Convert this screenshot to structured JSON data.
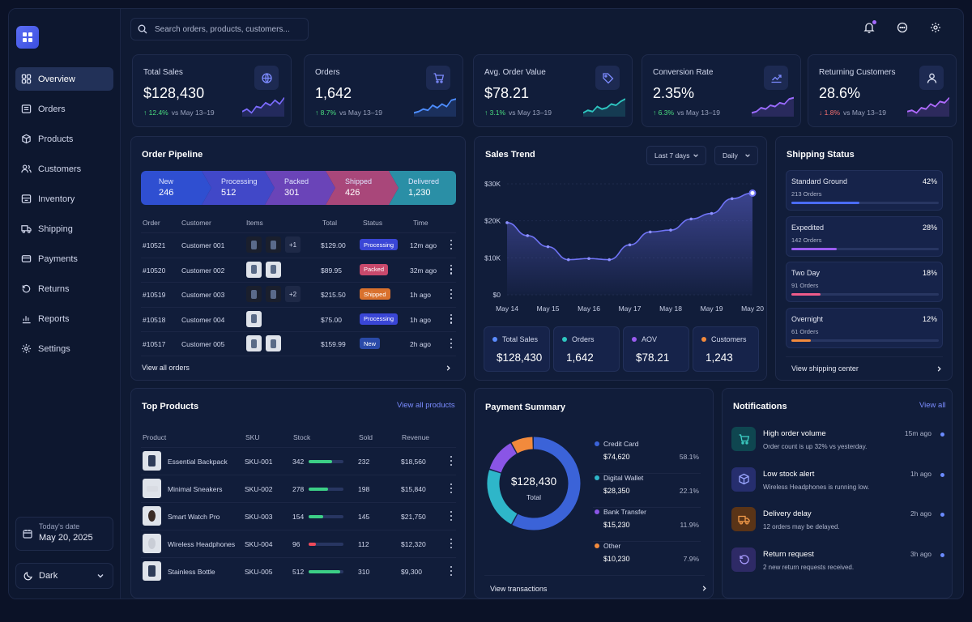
{
  "search": {
    "placeholder": "Search orders, products, customers..."
  },
  "nav": [
    {
      "label": "Overview",
      "icon": "grid-icon"
    },
    {
      "label": "Orders",
      "icon": "orders-icon"
    },
    {
      "label": "Products",
      "icon": "box-icon"
    },
    {
      "label": "Customers",
      "icon": "users-icon"
    },
    {
      "label": "Inventory",
      "icon": "inventory-icon"
    },
    {
      "label": "Shipping",
      "icon": "truck-icon"
    },
    {
      "label": "Payments",
      "icon": "card-icon"
    },
    {
      "label": "Returns",
      "icon": "return-icon"
    },
    {
      "label": "Reports",
      "icon": "chart-icon"
    },
    {
      "label": "Settings",
      "icon": "gear-icon"
    }
  ],
  "today": {
    "label": "Today's date",
    "value": "May 20, 2025"
  },
  "theme": {
    "label": "Dark"
  },
  "kpis": [
    {
      "title": "Total Sales",
      "value": "$128,430",
      "delta": "12.4%",
      "trend": "up",
      "compare": "vs May 13–19",
      "icon": "globe-icon"
    },
    {
      "title": "Orders",
      "value": "1,642",
      "delta": "8.7%",
      "trend": "up",
      "compare": "vs May 13–19",
      "icon": "cart-icon"
    },
    {
      "title": "Avg. Order Value",
      "value": "$78.21",
      "delta": "3.1%",
      "trend": "up",
      "compare": "vs May 13–19",
      "icon": "tag-icon"
    },
    {
      "title": "Conversion Rate",
      "value": "2.35%",
      "delta": "6.3%",
      "trend": "up",
      "compare": "vs May 13–19",
      "icon": "trend-icon"
    },
    {
      "title": "Returning Customers",
      "value": "28.6%",
      "delta": "1.8%",
      "trend": "down",
      "compare": "vs May 13–19",
      "icon": "user-icon"
    }
  ],
  "pipeline": {
    "title": "Order Pipeline",
    "stages": [
      {
        "label": "New",
        "count": "246",
        "color": "#2f4fd1"
      },
      {
        "label": "Processing",
        "count": "512",
        "color": "#4148c8"
      },
      {
        "label": "Packed",
        "count": "301",
        "color": "#6a44b8"
      },
      {
        "label": "Shipped",
        "count": "426",
        "color": "#a9477a"
      },
      {
        "label": "Delivered",
        "count": "1,230",
        "color": "#2a8fa6"
      }
    ],
    "headers": [
      "Order",
      "Customer",
      "Items",
      "Total",
      "Status",
      "Time"
    ],
    "rows": [
      {
        "id": "#10521",
        "customer": "Customer 001",
        "extra": "+1",
        "total": "$129.00",
        "status": "Processing",
        "statusColor": "#3a46d6",
        "time": "12m ago"
      },
      {
        "id": "#10520",
        "customer": "Customer 002",
        "extra": "",
        "total": "$89.95",
        "status": "Packed",
        "statusColor": "#c8496c",
        "time": "32m ago"
      },
      {
        "id": "#10519",
        "customer": "Customer 003",
        "extra": "+2",
        "total": "$215.50",
        "status": "Shipped",
        "statusColor": "#d9712d",
        "time": "1h ago"
      },
      {
        "id": "#10518",
        "customer": "Customer 004",
        "extra": "",
        "total": "$75.00",
        "status": "Processing",
        "statusColor": "#3a46d6",
        "time": "1h ago"
      },
      {
        "id": "#10517",
        "customer": "Customer 005",
        "extra": "",
        "total": "$159.99",
        "status": "New",
        "statusColor": "#2a4aa8",
        "time": "2h ago"
      }
    ],
    "footer": "View all orders"
  },
  "sales_trend": {
    "title": "Sales Trend",
    "range": "Last 7 days",
    "interval": "Daily",
    "tiles": [
      {
        "label": "Total Sales",
        "value": "$128,430",
        "color": "#5b8cff"
      },
      {
        "label": "Orders",
        "value": "1,642",
        "color": "#2ec6c0"
      },
      {
        "label": "AOV",
        "value": "$78.21",
        "color": "#9a5cf0"
      },
      {
        "label": "Customers",
        "value": "1,243",
        "color": "#f28a3c"
      }
    ]
  },
  "chart_data": {
    "type": "area",
    "x": [
      "May 14",
      "May 14.5",
      "May 15",
      "May 15.5",
      "May 16",
      "May 16.5",
      "May 17",
      "May 17.5",
      "May 18",
      "May 18.5",
      "May 19",
      "May 19.5",
      "May 20"
    ],
    "categories": [
      "May 14",
      "May 15",
      "May 16",
      "May 17",
      "May 18",
      "May 19",
      "May 20"
    ],
    "values": [
      19500,
      16000,
      13000,
      9500,
      9800,
      9500,
      13500,
      17000,
      17500,
      20500,
      22000,
      26000,
      27500
    ],
    "yticks": [
      "$0",
      "$10K",
      "$20K",
      "$30K"
    ],
    "ylim": [
      0,
      30000
    ],
    "grid": true,
    "color": "#6f73f5"
  },
  "shipping": {
    "title": "Shipping Status",
    "items": [
      {
        "name": "Standard Ground",
        "pct": "42%",
        "orders": "213 Orders",
        "fill": 0.42,
        "color": "#4a6cf5"
      },
      {
        "name": "Expedited",
        "pct": "28%",
        "orders": "142 Orders",
        "fill": 0.28,
        "color": "#9a5cf0"
      },
      {
        "name": "Two Day",
        "pct": "18%",
        "orders": "91 Orders",
        "fill": 0.18,
        "color": "#ef5b8a"
      },
      {
        "name": "Overnight",
        "pct": "12%",
        "orders": "61 Orders",
        "fill": 0.12,
        "color": "#f28a3c"
      }
    ],
    "footer": "View shipping center"
  },
  "top_products": {
    "title": "Top Products",
    "link": "View all products",
    "headers": [
      "Product",
      "SKU",
      "Stock",
      "Sold",
      "Revenue"
    ],
    "rows": [
      {
        "name": "Essential Backpack",
        "sku": "SKU-001",
        "stock": "342",
        "stockFill": 0.68,
        "stockColor": "#3ccf86",
        "sold": "232",
        "revenue": "$18,560"
      },
      {
        "name": "Minimal Sneakers",
        "sku": "SKU-002",
        "stock": "278",
        "stockFill": 0.56,
        "stockColor": "#3ccf86",
        "sold": "198",
        "revenue": "$15,840"
      },
      {
        "name": "Smart Watch Pro",
        "sku": "SKU-003",
        "stock": "154",
        "stockFill": 0.42,
        "stockColor": "#3ccf86",
        "sold": "145",
        "revenue": "$21,750"
      },
      {
        "name": "Wireless Headphones",
        "sku": "SKU-004",
        "stock": "96",
        "stockFill": 0.22,
        "stockColor": "#ef4a5a",
        "sold": "112",
        "revenue": "$12,320"
      },
      {
        "name": "Stainless Bottle",
        "sku": "SKU-005",
        "stock": "512",
        "stockFill": 0.9,
        "stockColor": "#3ccf86",
        "sold": "310",
        "revenue": "$9,300"
      }
    ]
  },
  "payment": {
    "title": "Payment Summary",
    "total": "$128,430",
    "total_label": "Total",
    "methods": [
      {
        "name": "Credit Card",
        "amount": "$74,620",
        "pct": "58.1%",
        "share": 58.1,
        "color": "#3b63d8"
      },
      {
        "name": "Digital Wallet",
        "amount": "$28,350",
        "pct": "22.1%",
        "share": 22.1,
        "color": "#2eb6c9"
      },
      {
        "name": "Bank Transfer",
        "amount": "$15,230",
        "pct": "11.9%",
        "share": 11.9,
        "color": "#8a55e6"
      },
      {
        "name": "Other",
        "amount": "$10,230",
        "pct": "7.9%",
        "share": 7.9,
        "color": "#f28a3c"
      }
    ],
    "footer": "View transactions"
  },
  "notifications": {
    "title": "Notifications",
    "link": "View all",
    "items": [
      {
        "title": "High order volume",
        "body": "Order count is up 32% vs yesterday.",
        "time": "15m ago",
        "icon": "cart-icon",
        "bg": "#0f4650",
        "fg": "#3fd3c8"
      },
      {
        "title": "Low stock alert",
        "body": "Wireless Headphones is running low.",
        "time": "1h ago",
        "icon": "box-icon",
        "bg": "#262e6e",
        "fg": "#9aa6ff"
      },
      {
        "title": "Delivery delay",
        "body": "12 orders may be delayed.",
        "time": "2h ago",
        "icon": "truck-icon",
        "bg": "#5a3417",
        "fg": "#f29a4a"
      },
      {
        "title": "Return request",
        "body": "2 new return requests received.",
        "time": "3h ago",
        "icon": "return-icon",
        "bg": "#2e2a66",
        "fg": "#a99cff"
      }
    ]
  }
}
